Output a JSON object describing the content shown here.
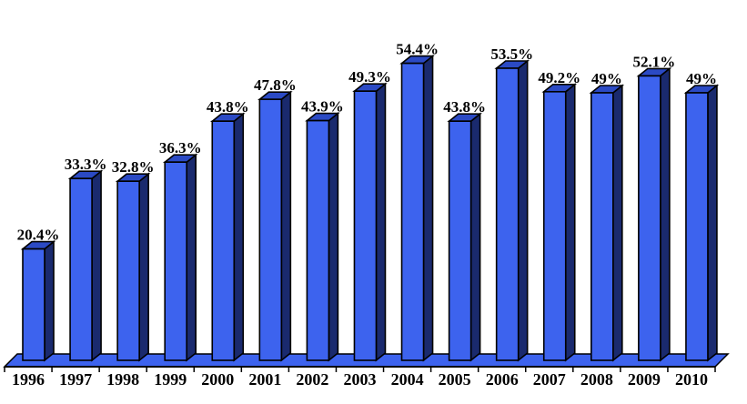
{
  "chart_data": {
    "type": "bar",
    "style": "3d-column",
    "title": "",
    "xlabel": "",
    "ylabel": "",
    "categories": [
      "1996",
      "1997",
      "1998",
      "1999",
      "2000",
      "2001",
      "2002",
      "2003",
      "2004",
      "2005",
      "2006",
      "2007",
      "2008",
      "2009",
      "2010"
    ],
    "values": [
      20.4,
      33.3,
      32.8,
      36.3,
      43.8,
      47.8,
      43.9,
      49.3,
      54.4,
      43.8,
      53.5,
      49.2,
      49,
      52.1,
      49
    ],
    "value_labels": [
      "20.4%",
      "33.3%",
      "32.8%",
      "36.3%",
      "43.8%",
      "47.8%",
      "43.9%",
      "49.3%",
      "54.4%",
      "43.8%",
      "53.5%",
      "49.2%",
      "49%",
      "52.1%",
      "49%"
    ],
    "ylim": [
      0,
      60
    ],
    "grid": false,
    "legend": "none",
    "colors": {
      "bar_front": "#3D63EE",
      "bar_top": "#2B4AC4",
      "bar_side": "#1A2A6E",
      "outline": "#000000",
      "floor": "#3D63EE",
      "label_text": "#000000",
      "background": "#FFFFFF"
    }
  }
}
